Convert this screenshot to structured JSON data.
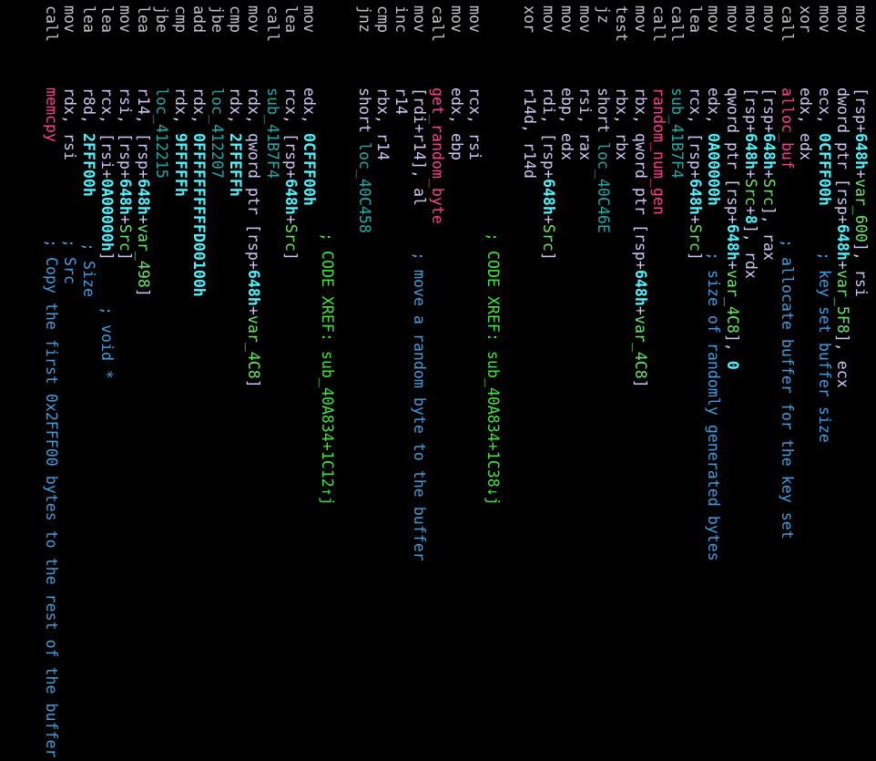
{
  "lines": [
    {
      "mnemonic": "mov",
      "operands": "[rsp+648h+var_600], rsi"
    },
    {
      "mnemonic": "mov",
      "operands": "dword ptr [rsp+648h+var_5F8], ecx"
    },
    {
      "mnemonic": "mov",
      "operands": "ecx, 0CFFF00h",
      "comment": "; key set buffer size"
    },
    {
      "mnemonic": "xor",
      "operands": "edx, edx"
    },
    {
      "mnemonic": "call",
      "operands": "alloc_buf",
      "comment": "; allocate buffer for the key set"
    },
    {
      "mnemonic": "mov",
      "operands": "[rsp+648h+Src], rax"
    },
    {
      "mnemonic": "mov",
      "operands": "[rsp+648h+Src+8], rdx"
    },
    {
      "mnemonic": "mov",
      "operands": "qword ptr [rsp+648h+var_4C8], 0"
    },
    {
      "mnemonic": "mov",
      "operands": "edx, 0A00000h",
      "comment": "; size of randomly generated bytes"
    },
    {
      "mnemonic": "lea",
      "operands": "rcx, [rsp+648h+Src]"
    },
    {
      "mnemonic": "call",
      "operands": "sub_41B7F4"
    },
    {
      "mnemonic": "call",
      "operands": "random_num_gen"
    },
    {
      "mnemonic": "mov",
      "operands": "rbx, qword ptr [rsp+648h+var_4C8]"
    },
    {
      "mnemonic": "test",
      "operands": "rbx, rbx"
    },
    {
      "mnemonic": "jz",
      "operands": "short loc_40C46E"
    },
    {
      "mnemonic": "mov",
      "operands": "rsi, rax"
    },
    {
      "mnemonic": "mov",
      "operands": "ebp, edx"
    },
    {
      "mnemonic": "mov",
      "operands": "rdi, [rsp+648h+Src]"
    },
    {
      "mnemonic": "xor",
      "operands": "r14d, r14d"
    },
    null,
    {
      "comment": "; CODE XREF: sub_40A834+1C38↓j"
    },
    {
      "mnemonic": "mov",
      "operands": "rcx, rsi"
    },
    {
      "mnemonic": "mov",
      "operands": "edx, ebp"
    },
    {
      "mnemonic": "call",
      "operands": "get_random_byte"
    },
    {
      "mnemonic": "mov",
      "operands": "[rdi+r14], al",
      "comment": "; move a random byte to the buffer"
    },
    {
      "mnemonic": "inc",
      "operands": "r14"
    },
    {
      "mnemonic": "cmp",
      "operands": "rbx, r14"
    },
    {
      "mnemonic": "jnz",
      "operands": "short loc_40C458"
    },
    null,
    {
      "comment": "; CODE XREF: sub_40A834+1C12↑j"
    },
    {
      "mnemonic": "mov",
      "operands": "edx, 0CFFF00h"
    },
    {
      "mnemonic": "lea",
      "operands": "rcx, [rsp+648h+Src]"
    },
    {
      "mnemonic": "call",
      "operands": "sub_41B7F4"
    },
    {
      "mnemonic": "mov",
      "operands": "rdx, qword ptr [rsp+648h+var_4C8]"
    },
    {
      "mnemonic": "cmp",
      "operands": "rdx, 2FFEFFh"
    },
    {
      "mnemonic": "jbe",
      "operands": "loc_412207"
    },
    {
      "mnemonic": "add",
      "operands": "rdx, 0FFFFFFFFFFD00100h"
    },
    {
      "mnemonic": "cmp",
      "operands": "rdx, 9FFFFFh"
    },
    {
      "mnemonic": "jbe",
      "operands": "loc_412215"
    },
    {
      "mnemonic": "lea",
      "operands": "r14, [rsp+648h+var_498]"
    },
    {
      "mnemonic": "mov",
      "operands": "rsi, [rsp+648h+Src]"
    },
    {
      "mnemonic": "lea",
      "operands": "rcx, [rsi+0A00000h]",
      "comment": "; void *"
    },
    {
      "mnemonic": "lea",
      "operands": "r8d, 2FFF00h",
      "comment": "; Size"
    },
    {
      "mnemonic": "mov",
      "operands": "rdx, rsi",
      "comment": "; Src"
    },
    {
      "mnemonic": "call",
      "operands": "memcpy",
      "comment": "; Copy the first 0x2FFF00 bytes to the rest of the buffer"
    }
  ]
}
